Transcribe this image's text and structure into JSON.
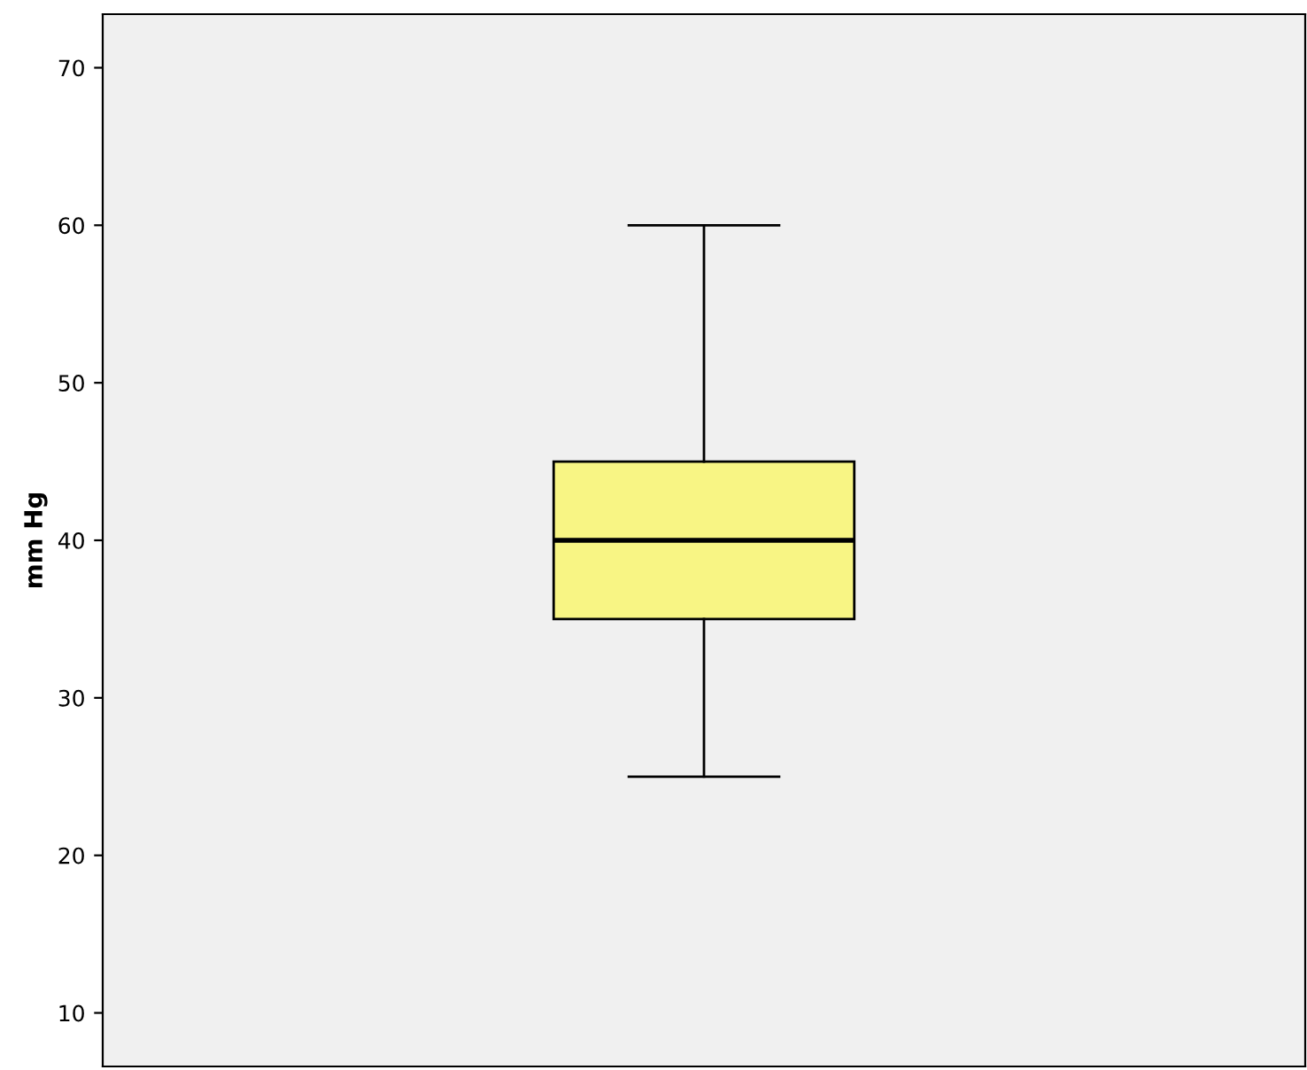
{
  "chart_data": {
    "type": "box",
    "ylabel": "mm Hg",
    "categories": [
      null
    ],
    "boxes": [
      {
        "low": 25,
        "q1": 35,
        "median": 40,
        "q3": 45,
        "high": 60
      }
    ],
    "color": "#f8f584",
    "ylim": [
      6.6,
      73.4
    ],
    "yticks": [
      10,
      20,
      30,
      40,
      50,
      60,
      70
    ],
    "grid": false
  }
}
